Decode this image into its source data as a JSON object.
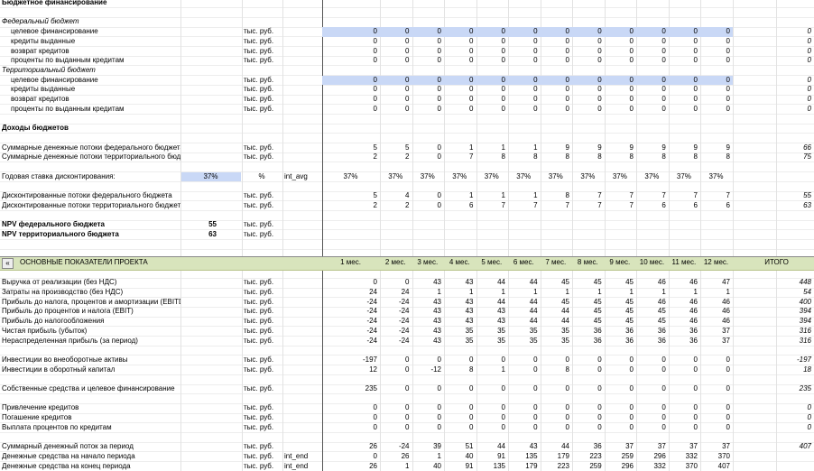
{
  "budget": {
    "title": "Бюджетное финансирование",
    "groups": [
      {
        "title": "Федеральный бюджет",
        "rows": [
          {
            "label": "целевое финансирование",
            "unit": "тыс. руб.",
            "values": [
              0,
              0,
              0,
              0,
              0,
              0,
              0,
              0,
              0,
              0,
              0,
              0
            ],
            "total": 0
          },
          {
            "label": "кредиты выданные",
            "unit": "тыс. руб.",
            "values": [
              0,
              0,
              0,
              0,
              0,
              0,
              0,
              0,
              0,
              0,
              0,
              0
            ],
            "total": 0
          },
          {
            "label": "возврат кредитов",
            "unit": "тыс. руб.",
            "values": [
              0,
              0,
              0,
              0,
              0,
              0,
              0,
              0,
              0,
              0,
              0,
              0
            ],
            "total": 0
          },
          {
            "label": "проценты по выданным кредитам",
            "unit": "тыс. руб.",
            "values": [
              0,
              0,
              0,
              0,
              0,
              0,
              0,
              0,
              0,
              0,
              0,
              0
            ],
            "total": 0
          }
        ]
      },
      {
        "title": "Территориальный бюджет",
        "rows": [
          {
            "label": "целевое финансирование",
            "unit": "тыс. руб.",
            "values": [
              0,
              0,
              0,
              0,
              0,
              0,
              0,
              0,
              0,
              0,
              0,
              0
            ],
            "total": 0
          },
          {
            "label": "кредиты выданные",
            "unit": "тыс. руб.",
            "values": [
              0,
              0,
              0,
              0,
              0,
              0,
              0,
              0,
              0,
              0,
              0,
              0
            ],
            "total": 0
          },
          {
            "label": "возврат кредитов",
            "unit": "тыс. руб.",
            "values": [
              0,
              0,
              0,
              0,
              0,
              0,
              0,
              0,
              0,
              0,
              0,
              0
            ],
            "total": 0
          },
          {
            "label": "проценты по выданным кредитам",
            "unit": "тыс. руб.",
            "values": [
              0,
              0,
              0,
              0,
              0,
              0,
              0,
              0,
              0,
              0,
              0,
              0
            ],
            "total": 0
          }
        ]
      }
    ]
  },
  "income": {
    "title": "Доходы бюджетов",
    "flows": [
      {
        "label": "Суммарные денежные потоки федерального бюджета",
        "unit": "тыс. руб.",
        "values": [
          5,
          5,
          0,
          1,
          1,
          1,
          9,
          9,
          9,
          9,
          9,
          9
        ],
        "total": 66
      },
      {
        "label": "Суммарные денежные потоки территориального бюджета",
        "unit": "тыс. руб.",
        "values": [
          2,
          2,
          0,
          7,
          8,
          8,
          8,
          8,
          8,
          8,
          8,
          8
        ],
        "total": 75
      }
    ],
    "discount_rate": {
      "label": "Годовая ставка дисконтирования:",
      "value": "37%",
      "unit": "%",
      "param": "int_avg",
      "values": [
        "37%",
        "37%",
        "37%",
        "37%",
        "37%",
        "37%",
        "37%",
        "37%",
        "37%",
        "37%",
        "37%",
        "37%"
      ]
    },
    "discounted": [
      {
        "label": "Дисконтированные потоки федерального бюджета",
        "unit": "тыс. руб.",
        "values": [
          5,
          4,
          0,
          1,
          1,
          1,
          8,
          7,
          7,
          7,
          7,
          7
        ],
        "total": 55
      },
      {
        "label": "Дисконтированные потоки территориального бюджета",
        "unit": "тыс. руб.",
        "values": [
          2,
          2,
          0,
          6,
          7,
          7,
          7,
          7,
          7,
          6,
          6,
          6
        ],
        "total": 63
      }
    ],
    "npv": [
      {
        "label": "NPV федерального бюджета",
        "value": 55,
        "unit": "тыс. руб."
      },
      {
        "label": "NPV территориального бюджета",
        "value": 63,
        "unit": "тыс. руб."
      }
    ]
  },
  "indicators": {
    "button": "«",
    "title": "ОСНОВНЫЕ ПОКАЗАТЕЛИ ПРОЕКТА",
    "periods": [
      "1 мес.",
      "2 мес.",
      "3 мес.",
      "4 мес.",
      "5 мес.",
      "6 мес.",
      "7 мес.",
      "8 мес.",
      "9 мес.",
      "10 мес.",
      "11 мес.",
      "12 мес."
    ],
    "total_header": "ИТОГО",
    "groups": [
      [
        {
          "label": "Выручка от реализации (без НДС)",
          "unit": "тыс. руб.",
          "values": [
            0,
            0,
            43,
            43,
            44,
            44,
            45,
            45,
            45,
            46,
            46,
            47
          ],
          "total": 448
        },
        {
          "label": "Затраты на производство (без НДС)",
          "unit": "тыс. руб.",
          "values": [
            24,
            24,
            1,
            1,
            1,
            1,
            1,
            1,
            1,
            1,
            1,
            1
          ],
          "total": 54
        },
        {
          "label": "Прибыль до налога, процентов и амортизации (EBITDA)",
          "unit": "тыс. руб.",
          "values": [
            -24,
            -24,
            43,
            43,
            44,
            44,
            45,
            45,
            45,
            46,
            46,
            46
          ],
          "total": 400
        },
        {
          "label": "Прибыль до процентов и налога (EBIT)",
          "unit": "тыс. руб.",
          "values": [
            -24,
            -24,
            43,
            43,
            43,
            44,
            44,
            45,
            45,
            45,
            46,
            46
          ],
          "total": 394
        },
        {
          "label": "Прибыль до налогообложения",
          "unit": "тыс. руб.",
          "values": [
            -24,
            -24,
            43,
            43,
            43,
            44,
            44,
            45,
            45,
            45,
            46,
            46
          ],
          "total": 394
        },
        {
          "label": "Чистая прибыль (убыток)",
          "unit": "тыс. руб.",
          "values": [
            -24,
            -24,
            43,
            35,
            35,
            35,
            35,
            36,
            36,
            36,
            36,
            37
          ],
          "total": 316
        },
        {
          "label": "Нераспределенная прибыль (за период)",
          "unit": "тыс. руб.",
          "values": [
            -24,
            -24,
            43,
            35,
            35,
            35,
            35,
            36,
            36,
            36,
            36,
            37
          ],
          "total": 316
        }
      ],
      [
        {
          "label": "Инвестиции во внеоборотные активы",
          "unit": "тыс. руб.",
          "values": [
            -197,
            0,
            0,
            0,
            0,
            0,
            0,
            0,
            0,
            0,
            0,
            0
          ],
          "total": -197
        },
        {
          "label": "Инвестиции в оборотный капитал",
          "unit": "тыс. руб.",
          "values": [
            12,
            0,
            -12,
            8,
            1,
            0,
            8,
            0,
            0,
            0,
            0,
            0
          ],
          "total": 18
        }
      ],
      [
        {
          "label": "Собственные средства и целевое финансирование",
          "unit": "тыс. руб.",
          "values": [
            235,
            0,
            0,
            0,
            0,
            0,
            0,
            0,
            0,
            0,
            0,
            0
          ],
          "total": 235
        }
      ],
      [
        {
          "label": "Привлечение кредитов",
          "unit": "тыс. руб.",
          "values": [
            0,
            0,
            0,
            0,
            0,
            0,
            0,
            0,
            0,
            0,
            0,
            0
          ],
          "total": 0
        },
        {
          "label": "Погашение кредитов",
          "unit": "тыс. руб.",
          "values": [
            0,
            0,
            0,
            0,
            0,
            0,
            0,
            0,
            0,
            0,
            0,
            0
          ],
          "total": 0
        },
        {
          "label": "Выплата процентов по кредитам",
          "unit": "тыс. руб.",
          "values": [
            0,
            0,
            0,
            0,
            0,
            0,
            0,
            0,
            0,
            0,
            0,
            0
          ],
          "total": 0
        }
      ],
      [
        {
          "label": "Суммарный денежный поток за период",
          "unit": "тыс. руб.",
          "values": [
            26,
            -24,
            39,
            51,
            44,
            43,
            44,
            36,
            37,
            37,
            37,
            37
          ],
          "total": 407
        },
        {
          "label": "Денежные средства на начало периода",
          "unit": "тыс. руб.",
          "param": "int_end",
          "values": [
            0,
            26,
            1,
            40,
            91,
            135,
            179,
            223,
            259,
            296,
            332,
            370
          ]
        },
        {
          "label": "Денежные средства на конец периода",
          "unit": "тыс. руб.",
          "param": "int_end",
          "values": [
            26,
            1,
            40,
            91,
            135,
            179,
            223,
            259,
            296,
            332,
            370,
            407
          ]
        }
      ]
    ]
  }
}
